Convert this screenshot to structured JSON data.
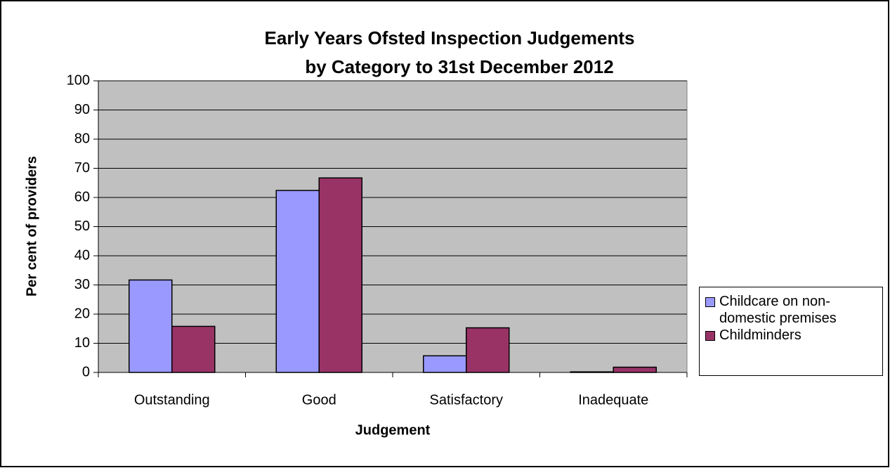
{
  "chart_data": {
    "type": "bar",
    "title": [
      "Early Years Ofsted Inspection Judgements",
      "by Category to 31st December 2012"
    ],
    "x_label": "Judgement",
    "y_label": "Per cent of providers",
    "categories": [
      "Outstanding",
      "Good",
      "Satisfactory",
      "Inadequate"
    ],
    "series": [
      {
        "name": "Childcare on non-domestic premises",
        "color": "#9999ff",
        "values": [
          31.7,
          62.4,
          5.7,
          0.2
        ]
      },
      {
        "name": "Childminders",
        "color": "#993366",
        "values": [
          15.8,
          66.7,
          15.3,
          1.8
        ]
      }
    ],
    "ylim": [
      0,
      100
    ],
    "yticks": [
      0,
      10,
      20,
      30,
      40,
      50,
      60,
      70,
      80,
      90,
      100
    ],
    "grid": true,
    "legend": "right"
  }
}
